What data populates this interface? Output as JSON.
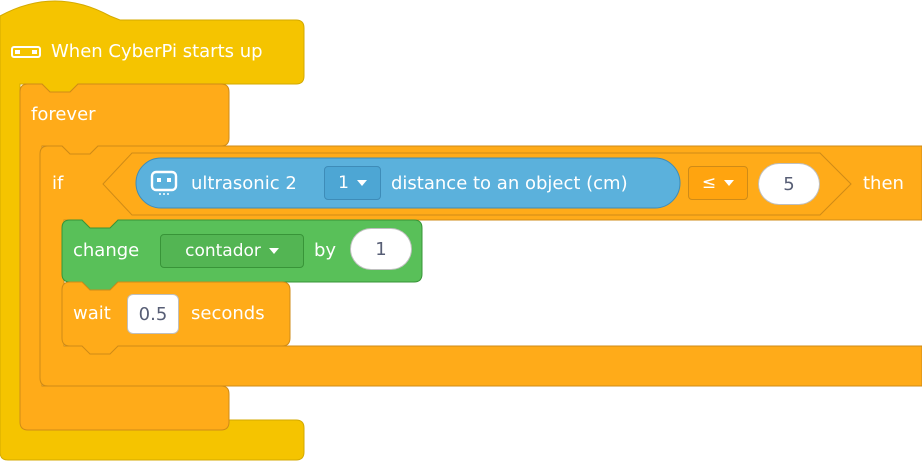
{
  "colors": {
    "event": "#F5C400",
    "event_border": "#D4AA00",
    "control": "#FFAB19",
    "control_border": "#CF8B17",
    "sensor": "#5BB1DC",
    "sensor_border": "#3E8CB8",
    "variable": "#59C059",
    "variable_border": "#389438",
    "input_text": "#575E75"
  },
  "hat_block": {
    "icon": "cyberpi-board-icon",
    "label": "When CyberPi starts up"
  },
  "forever_block": {
    "label": "forever"
  },
  "if_block": {
    "if_label": "if",
    "then_label": "then",
    "condition": {
      "sensor_icon": "ultrasonic-sensor-icon",
      "sensor_label": "ultrasonic 2",
      "port_value": "1",
      "measure_label": "distance to an object (cm)",
      "operator": "≤",
      "compare_value": "5"
    }
  },
  "change_block": {
    "label": "change",
    "variable": "contador",
    "by_label": "by",
    "amount": "1"
  },
  "wait_block": {
    "label": "wait",
    "value": "0.5",
    "unit_label": "seconds"
  }
}
